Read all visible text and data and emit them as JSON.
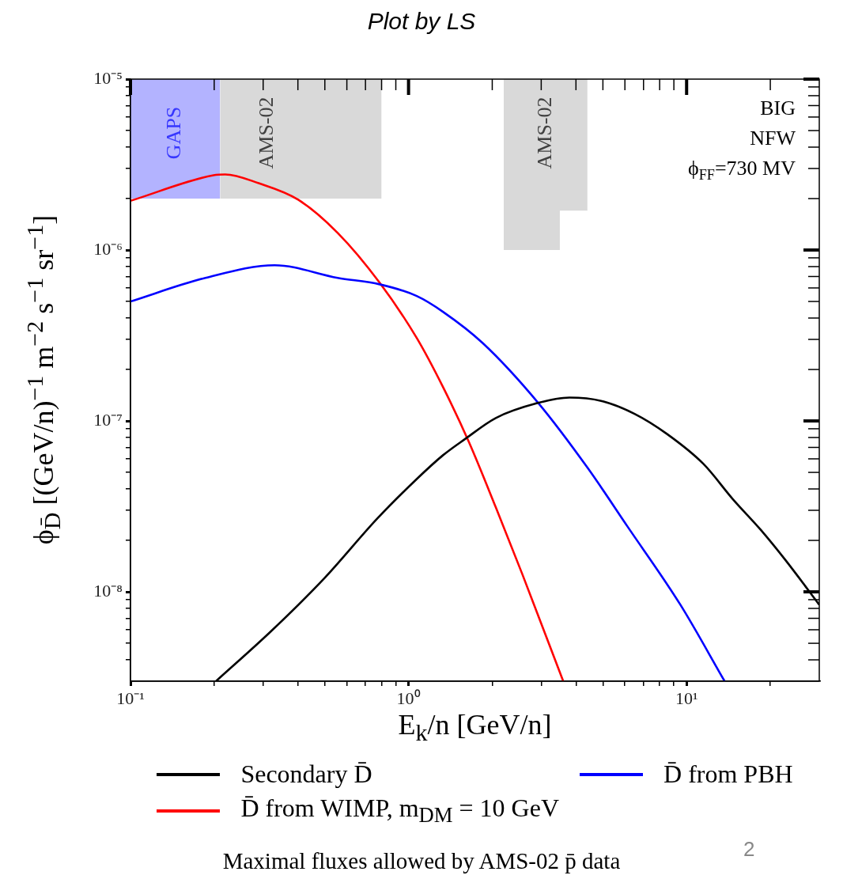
{
  "chart_data": {
    "type": "line",
    "title": "Plot by LS",
    "xlabel": "E$_{k}$/n [GeV/n]",
    "ylabel": "ϕ$_{D̄}$ [(GeV/n)$^{−1}$ m$^{−2}$ s$^{−1}$ sr$^{−1}$]",
    "log": "xy",
    "legend": "bottom",
    "xlim": [
      0.1,
      30
    ],
    "ylim": [
      3e-09,
      1e-05
    ],
    "xticks": [
      {
        "value": 0.1,
        "label": "10⁻¹"
      },
      {
        "value": 0.2,
        "label": null
      },
      {
        "value": 0.3,
        "label": null
      },
      {
        "value": 0.4,
        "label": null
      },
      {
        "value": 0.5,
        "label": null
      },
      {
        "value": 0.6,
        "label": null
      },
      {
        "value": 0.7,
        "label": null
      },
      {
        "value": 0.8,
        "label": null
      },
      {
        "value": 0.9,
        "label": null
      },
      {
        "value": 1,
        "label": "10⁰"
      },
      {
        "value": 2,
        "label": null
      },
      {
        "value": 3,
        "label": null
      },
      {
        "value": 4,
        "label": null
      },
      {
        "value": 5,
        "label": null
      },
      {
        "value": 6,
        "label": null
      },
      {
        "value": 7,
        "label": null
      },
      {
        "value": 8,
        "label": null
      },
      {
        "value": 9,
        "label": null
      },
      {
        "value": 10,
        "label": "10¹"
      },
      {
        "value": 20,
        "label": null
      }
    ],
    "yticks": [
      {
        "value": 4e-09,
        "label": null
      },
      {
        "value": 5e-09,
        "label": null
      },
      {
        "value": 6e-09,
        "label": null
      },
      {
        "value": 7e-09,
        "label": null
      },
      {
        "value": 8e-09,
        "label": null
      },
      {
        "value": 9e-09,
        "label": null
      },
      {
        "value": 1e-08,
        "label": "10⁻⁸"
      },
      {
        "value": 2e-08,
        "label": null
      },
      {
        "value": 3e-08,
        "label": null
      },
      {
        "value": 4e-08,
        "label": null
      },
      {
        "value": 5e-08,
        "label": null
      },
      {
        "value": 6e-08,
        "label": null
      },
      {
        "value": 7e-08,
        "label": null
      },
      {
        "value": 8e-08,
        "label": null
      },
      {
        "value": 9e-08,
        "label": null
      },
      {
        "value": 1e-07,
        "label": "10⁻⁷"
      },
      {
        "value": 2e-07,
        "label": null
      },
      {
        "value": 3e-07,
        "label": null
      },
      {
        "value": 4e-07,
        "label": null
      },
      {
        "value": 5e-07,
        "label": null
      },
      {
        "value": 6e-07,
        "label": null
      },
      {
        "value": 7e-07,
        "label": null
      },
      {
        "value": 8e-07,
        "label": null
      },
      {
        "value": 9e-07,
        "label": null
      },
      {
        "value": 1e-06,
        "label": "10⁻⁶"
      },
      {
        "value": 2e-06,
        "label": null
      },
      {
        "value": 3e-06,
        "label": null
      },
      {
        "value": 4e-06,
        "label": null
      },
      {
        "value": 5e-06,
        "label": null
      },
      {
        "value": 6e-06,
        "label": null
      },
      {
        "value": 7e-06,
        "label": null
      },
      {
        "value": 8e-06,
        "label": null
      },
      {
        "value": 9e-06,
        "label": null
      },
      {
        "value": 1e-05,
        "label": "10⁻⁵"
      }
    ],
    "series": [
      {
        "type": "area",
        "color": "#b3b3ff",
        "x": [
          0.1,
          0.21
        ],
        "values": [
          null,
          null
        ],
        "upper": [
          1e-05,
          1e-05
        ],
        "lower": [
          2e-06,
          2e-06
        ]
      },
      {
        "type": "area",
        "color": "#d9d9d9",
        "x": [
          0.21,
          0.8
        ],
        "values": [
          null,
          null
        ],
        "upper": [
          1e-05,
          1e-05
        ],
        "lower": [
          2e-06,
          2e-06
        ]
      },
      {
        "type": "area",
        "color": "#d9d9d9",
        "x": [
          2.2,
          3.5,
          3.5,
          4.4
        ],
        "values": [
          null,
          null,
          null,
          null
        ],
        "upper": [
          1e-05,
          1e-05,
          1e-05,
          1e-05
        ],
        "lower": [
          1e-06,
          1e-06,
          1.7e-06,
          1.7e-06
        ]
      },
      {
        "name": "Secondary D̄",
        "color": "#000000",
        "x": [
          0.203,
          0.321,
          0.498,
          0.773,
          1.07,
          1.33,
          1.59,
          2.06,
          2.9,
          3.79,
          4.93,
          6.5,
          8.49,
          11.5,
          14.7,
          18.5,
          22.7,
          30
        ],
        "values": [
          3e-09,
          5.9e-09,
          1.2e-08,
          2.69e-08,
          4.57e-08,
          6.3e-08,
          7.8e-08,
          1.04e-07,
          1.27e-07,
          1.37e-07,
          1.31e-07,
          1.1e-07,
          8.4e-08,
          5.6e-08,
          3.47e-08,
          2.3e-08,
          1.53e-08,
          8.4e-09
        ]
      },
      {
        "name": "D̄ from PBH",
        "color": "#0000ff",
        "x": [
          0.1,
          0.186,
          0.33,
          0.556,
          0.787,
          1.07,
          1.33,
          1.85,
          2.92,
          4.41,
          6.12,
          9.5,
          13.7
        ],
        "values": [
          5e-07,
          6.87e-07,
          8.15e-07,
          6.87e-07,
          6.3e-07,
          5.38e-07,
          4.35e-07,
          2.85e-07,
          1.28e-07,
          5.3e-08,
          2.42e-08,
          8.4e-09,
          3e-09
        ]
      },
      {
        "name": "D̄ from WIMP, m$_{DM}$ = 10 GeV",
        "color": "#ff0000",
        "x": [
          0.1,
          0.199,
          0.219,
          0.289,
          0.401,
          0.556,
          0.787,
          1.07,
          1.33,
          1.65,
          2.06,
          2.56,
          3.6
        ],
        "values": [
          1.94e-06,
          2.74e-06,
          2.77e-06,
          2.46e-06,
          1.97e-06,
          1.26e-06,
          6.44e-07,
          3.06e-07,
          1.58e-07,
          7.5e-08,
          3.12e-08,
          1.28e-08,
          3e-09
        ]
      }
    ],
    "annotations": [
      "BIG",
      "NFW",
      "ϕ$_{FF}$=730 MV",
      "Maximal fluxes allowed by AMS-02 p̄ data",
      "2",
      "GAPS",
      "AMS-02",
      "AMS-02"
    ]
  }
}
